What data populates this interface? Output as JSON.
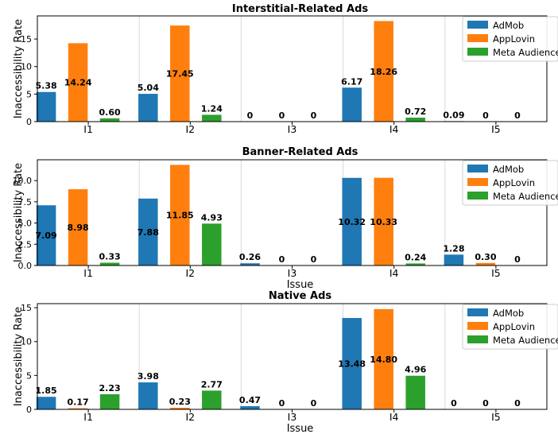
{
  "colors": {
    "AdMob": "#1f77b4",
    "AppLovin": "#ff7f0e",
    "Meta Audience": "#2ca02c"
  },
  "chart_data": [
    {
      "type": "bar",
      "title": "Interstitial-Related Ads",
      "xlabel": "",
      "ylabel": "Inaccessibility Rate",
      "categories": [
        "I1",
        "I2",
        "I3",
        "I4",
        "I5"
      ],
      "series": [
        {
          "name": "AdMob",
          "values": [
            5.38,
            5.04,
            0,
            6.17,
            0.09
          ],
          "labels": [
            "5.38",
            "5.04",
            "0",
            "6.17",
            "0.09"
          ]
        },
        {
          "name": "AppLovin",
          "values": [
            14.24,
            17.45,
            0,
            18.26,
            0
          ],
          "labels": [
            "14.24",
            "17.45",
            "0",
            "18.26",
            "0"
          ]
        },
        {
          "name": "Meta Audience",
          "values": [
            0.6,
            1.24,
            0,
            0.72,
            0
          ],
          "labels": [
            "0.60",
            "1.24",
            "0",
            "0.72",
            "0"
          ]
        }
      ],
      "ylim": [
        0,
        19.2
      ],
      "yticks": [
        0,
        5,
        10,
        15
      ],
      "ytick_labels": [
        "0",
        "5",
        "10",
        "15"
      ],
      "grid": "vertical",
      "legend": "top-right"
    },
    {
      "type": "bar",
      "title": "Banner-Related Ads",
      "xlabel": "Issue",
      "ylabel": "Inaccessibility Rate",
      "categories": [
        "I1",
        "I2",
        "I3",
        "I4",
        "I5"
      ],
      "series": [
        {
          "name": "AdMob",
          "values": [
            7.09,
            7.88,
            0.26,
            10.32,
            1.28
          ],
          "labels": [
            "7.09",
            "7.88",
            "0.26",
            "10.32",
            "1.28"
          ]
        },
        {
          "name": "AppLovin",
          "values": [
            8.98,
            11.85,
            0,
            10.33,
            0.3
          ],
          "labels": [
            "8.98",
            "11.85",
            "0",
            "10.33",
            "0.30"
          ]
        },
        {
          "name": "Meta Audience",
          "values": [
            0.33,
            4.93,
            0,
            0.24,
            0
          ],
          "labels": [
            "0.33",
            "4.93",
            "0",
            "0.24",
            "0"
          ]
        }
      ],
      "ylim": [
        0,
        12.45
      ],
      "yticks": [
        0,
        2.5,
        5,
        7.5,
        10
      ],
      "ytick_labels": [
        "0.0",
        "2.5",
        "5.0",
        "7.5",
        "10.0"
      ],
      "grid": "vertical",
      "legend": "top-right"
    },
    {
      "type": "bar",
      "title": "Native Ads",
      "xlabel": "Issue",
      "ylabel": "Inaccessibility Rate",
      "categories": [
        "I1",
        "I2",
        "I3",
        "I4",
        "I5"
      ],
      "series": [
        {
          "name": "AdMob",
          "values": [
            1.85,
            3.98,
            0.47,
            13.48,
            0
          ],
          "labels": [
            "1.85",
            "3.98",
            "0.47",
            "13.48",
            "0"
          ]
        },
        {
          "name": "AppLovin",
          "values": [
            0.17,
            0.23,
            0,
            14.8,
            0
          ],
          "labels": [
            "0.17",
            "0.23",
            "0",
            "14.80",
            "0"
          ]
        },
        {
          "name": "Meta Audience",
          "values": [
            2.23,
            2.77,
            0,
            4.96,
            0
          ],
          "labels": [
            "2.23",
            "2.77",
            "0",
            "4.96",
            "0"
          ]
        }
      ],
      "ylim": [
        0,
        15.6
      ],
      "yticks": [
        0,
        5,
        10,
        15
      ],
      "ytick_labels": [
        "0",
        "5",
        "10",
        "15"
      ],
      "grid": "vertical",
      "legend": "top-right"
    }
  ]
}
